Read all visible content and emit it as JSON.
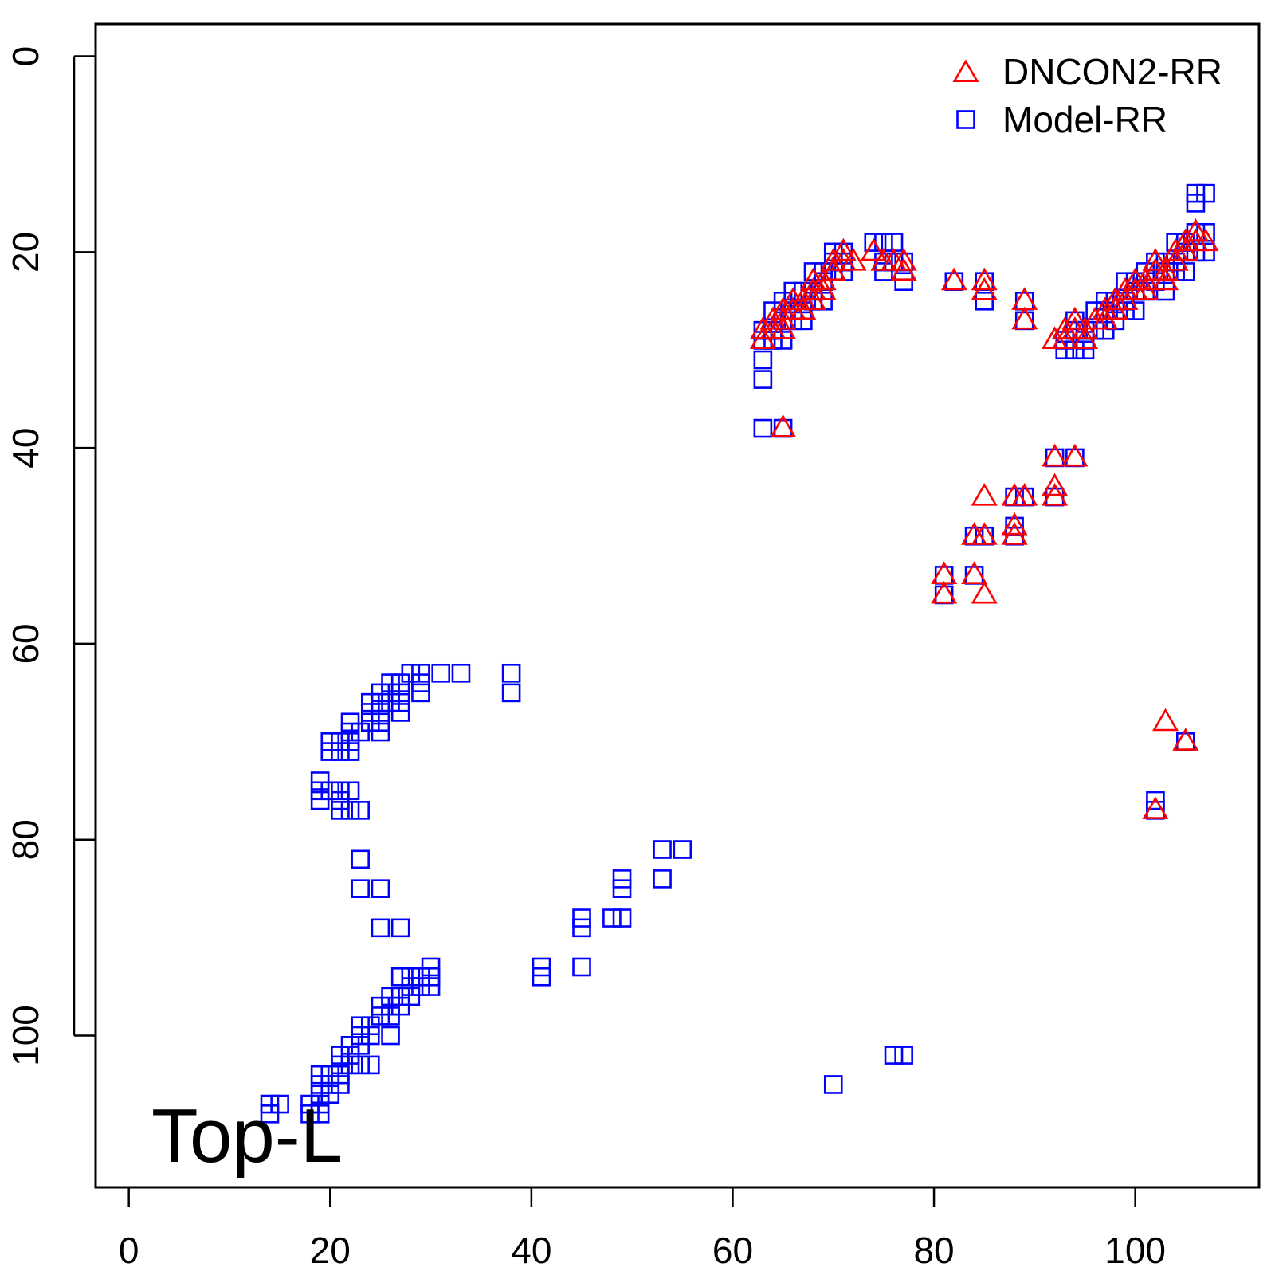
{
  "chart_data": {
    "type": "scatter",
    "title": "",
    "xlabel": "",
    "ylabel": "",
    "annotation": "Top-L",
    "xlim": [
      -3.3,
      112.3
    ],
    "ylim": [
      115.5,
      -3.3
    ],
    "x_ticks": [
      0,
      20,
      40,
      60,
      80,
      100
    ],
    "y_ticks": [
      0,
      20,
      40,
      60,
      80,
      100
    ],
    "grid": false,
    "legend": {
      "placement": "top-right"
    },
    "series": [
      {
        "name": "DNCON2-RR",
        "marker": "triangle",
        "color": "#ff0000",
        "points": [
          [
            63,
            28
          ],
          [
            63,
            29
          ],
          [
            64,
            27
          ],
          [
            64,
            28
          ],
          [
            65,
            26
          ],
          [
            65,
            27
          ],
          [
            65,
            28
          ],
          [
            66,
            25
          ],
          [
            66,
            26
          ],
          [
            67,
            25
          ],
          [
            67,
            26
          ],
          [
            68,
            23
          ],
          [
            68,
            24
          ],
          [
            68,
            25
          ],
          [
            69,
            23
          ],
          [
            69,
            24
          ],
          [
            70,
            21
          ],
          [
            70,
            22
          ],
          [
            71,
            20
          ],
          [
            71,
            21
          ],
          [
            72,
            21
          ],
          [
            65,
            38
          ],
          [
            74,
            20
          ],
          [
            75,
            21
          ],
          [
            76,
            21
          ],
          [
            77,
            21
          ],
          [
            77,
            22
          ],
          [
            82,
            23
          ],
          [
            85,
            23
          ],
          [
            85,
            24
          ],
          [
            89,
            25
          ],
          [
            89,
            27
          ],
          [
            92,
            29
          ],
          [
            93,
            28
          ],
          [
            93,
            29
          ],
          [
            94,
            27
          ],
          [
            94,
            28
          ],
          [
            95,
            28
          ],
          [
            95,
            29
          ],
          [
            96,
            27
          ],
          [
            97,
            26
          ],
          [
            97,
            27
          ],
          [
            98,
            25
          ],
          [
            98,
            26
          ],
          [
            99,
            24
          ],
          [
            99,
            25
          ],
          [
            100,
            23
          ],
          [
            100,
            24
          ],
          [
            101,
            23
          ],
          [
            101,
            24
          ],
          [
            102,
            21
          ],
          [
            102,
            22
          ],
          [
            103,
            22
          ],
          [
            103,
            23
          ],
          [
            104,
            20
          ],
          [
            104,
            21
          ],
          [
            105,
            19
          ],
          [
            105,
            20
          ],
          [
            106,
            18
          ],
          [
            106,
            19
          ],
          [
            107,
            19
          ],
          [
            92,
            41
          ],
          [
            94,
            41
          ],
          [
            85,
            45
          ],
          [
            88,
            45
          ],
          [
            89,
            45
          ],
          [
            92,
            44
          ],
          [
            92,
            45
          ],
          [
            84,
            49
          ],
          [
            85,
            49
          ],
          [
            88,
            48
          ],
          [
            88,
            49
          ],
          [
            81,
            53
          ],
          [
            84,
            53
          ],
          [
            81,
            55
          ],
          [
            85,
            55
          ],
          [
            103,
            68
          ],
          [
            105,
            70
          ],
          [
            102,
            77
          ]
        ]
      },
      {
        "name": "Model-RR",
        "marker": "square",
        "color": "#0000ff",
        "points": [
          [
            63,
            28
          ],
          [
            63,
            29
          ],
          [
            63,
            31
          ],
          [
            63,
            33
          ],
          [
            63,
            38
          ],
          [
            64,
            26
          ],
          [
            64,
            28
          ],
          [
            64,
            29
          ],
          [
            65,
            25
          ],
          [
            65,
            27
          ],
          [
            65,
            29
          ],
          [
            65,
            38
          ],
          [
            66,
            24
          ],
          [
            66,
            26
          ],
          [
            66,
            27
          ],
          [
            67,
            24
          ],
          [
            67,
            26
          ],
          [
            67,
            27
          ],
          [
            68,
            22
          ],
          [
            68,
            24
          ],
          [
            68,
            25
          ],
          [
            69,
            22
          ],
          [
            69,
            23
          ],
          [
            69,
            25
          ],
          [
            70,
            20
          ],
          [
            70,
            21
          ],
          [
            70,
            22
          ],
          [
            71,
            20
          ],
          [
            71,
            21
          ],
          [
            71,
            22
          ],
          [
            74,
            19
          ],
          [
            75,
            19
          ],
          [
            75,
            21
          ],
          [
            75,
            22
          ],
          [
            76,
            19
          ],
          [
            76,
            21
          ],
          [
            77,
            21
          ],
          [
            77,
            23
          ],
          [
            82,
            23
          ],
          [
            85,
            23
          ],
          [
            85,
            25
          ],
          [
            89,
            25
          ],
          [
            89,
            27
          ],
          [
            93,
            29
          ],
          [
            93,
            30
          ],
          [
            94,
            27
          ],
          [
            94,
            28
          ],
          [
            94,
            30
          ],
          [
            95,
            28
          ],
          [
            95,
            29
          ],
          [
            95,
            30
          ],
          [
            96,
            26
          ],
          [
            96,
            28
          ],
          [
            97,
            25
          ],
          [
            97,
            26
          ],
          [
            97,
            28
          ],
          [
            98,
            25
          ],
          [
            98,
            27
          ],
          [
            99,
            23
          ],
          [
            99,
            25
          ],
          [
            99,
            26
          ],
          [
            100,
            23
          ],
          [
            100,
            24
          ],
          [
            100,
            26
          ],
          [
            101,
            22
          ],
          [
            101,
            24
          ],
          [
            102,
            21
          ],
          [
            102,
            23
          ],
          [
            103,
            21
          ],
          [
            103,
            22
          ],
          [
            103,
            24
          ],
          [
            104,
            19
          ],
          [
            104,
            21
          ],
          [
            104,
            22
          ],
          [
            105,
            19
          ],
          [
            105,
            20
          ],
          [
            105,
            22
          ],
          [
            106,
            14
          ],
          [
            106,
            15
          ],
          [
            106,
            18
          ],
          [
            106,
            20
          ],
          [
            107,
            14
          ],
          [
            107,
            18
          ],
          [
            107,
            20
          ],
          [
            92,
            41
          ],
          [
            94,
            41
          ],
          [
            92,
            45
          ],
          [
            88,
            45
          ],
          [
            89,
            45
          ],
          [
            84,
            49
          ],
          [
            85,
            49
          ],
          [
            88,
            48
          ],
          [
            88,
            49
          ],
          [
            81,
            53
          ],
          [
            81,
            55
          ],
          [
            84,
            53
          ],
          [
            105,
            70
          ],
          [
            102,
            76
          ],
          [
            102,
            77
          ],
          [
            28,
            63
          ],
          [
            29,
            63
          ],
          [
            31,
            63
          ],
          [
            33,
            63
          ],
          [
            38,
            63
          ],
          [
            38,
            65
          ],
          [
            26,
            64
          ],
          [
            27,
            64
          ],
          [
            29,
            64
          ],
          [
            25,
            65
          ],
          [
            26,
            65
          ],
          [
            27,
            65
          ],
          [
            29,
            65
          ],
          [
            24,
            66
          ],
          [
            25,
            66
          ],
          [
            26,
            66
          ],
          [
            27,
            66
          ],
          [
            24,
            67
          ],
          [
            25,
            67
          ],
          [
            27,
            67
          ],
          [
            22,
            68
          ],
          [
            24,
            68
          ],
          [
            25,
            68
          ],
          [
            22,
            69
          ],
          [
            23,
            69
          ],
          [
            25,
            69
          ],
          [
            20,
            70
          ],
          [
            21,
            70
          ],
          [
            22,
            70
          ],
          [
            20,
            71
          ],
          [
            21,
            71
          ],
          [
            22,
            71
          ],
          [
            19,
            74
          ],
          [
            19,
            75
          ],
          [
            19,
            76
          ],
          [
            20,
            75
          ],
          [
            21,
            75
          ],
          [
            21,
            76
          ],
          [
            21,
            77
          ],
          [
            22,
            75
          ],
          [
            22,
            77
          ],
          [
            23,
            77
          ],
          [
            23,
            82
          ],
          [
            23,
            85
          ],
          [
            25,
            85
          ],
          [
            25,
            89
          ],
          [
            27,
            89
          ],
          [
            27,
            94
          ],
          [
            28,
            94
          ],
          [
            29,
            94
          ],
          [
            30,
            93
          ],
          [
            30,
            94
          ],
          [
            28,
            95
          ],
          [
            29,
            95
          ],
          [
            30,
            95
          ],
          [
            26,
            96
          ],
          [
            27,
            96
          ],
          [
            28,
            96
          ],
          [
            25,
            97
          ],
          [
            26,
            97
          ],
          [
            27,
            97
          ],
          [
            25,
            98
          ],
          [
            26,
            98
          ],
          [
            24,
            99
          ],
          [
            23,
            99
          ],
          [
            24,
            100
          ],
          [
            26,
            100
          ],
          [
            23,
            100
          ],
          [
            23,
            101
          ],
          [
            22,
            101
          ],
          [
            22,
            102
          ],
          [
            21,
            102
          ],
          [
            21,
            103
          ],
          [
            22,
            103
          ],
          [
            23,
            103
          ],
          [
            24,
            103
          ],
          [
            19,
            104
          ],
          [
            20,
            104
          ],
          [
            21,
            104
          ],
          [
            19,
            105
          ],
          [
            20,
            105
          ],
          [
            21,
            105
          ],
          [
            19,
            106
          ],
          [
            20,
            106
          ],
          [
            18,
            107
          ],
          [
            19,
            107
          ],
          [
            14,
            107
          ],
          [
            15,
            107
          ],
          [
            14,
            108
          ],
          [
            18,
            108
          ],
          [
            19,
            108
          ],
          [
            41,
            93
          ],
          [
            41,
            94
          ],
          [
            45,
            88
          ],
          [
            45,
            89
          ],
          [
            45,
            93
          ],
          [
            48,
            88
          ],
          [
            49,
            84
          ],
          [
            49,
            85
          ],
          [
            49,
            88
          ],
          [
            53,
            81
          ],
          [
            53,
            84
          ],
          [
            55,
            81
          ],
          [
            70,
            105
          ],
          [
            76,
            102
          ],
          [
            77,
            102
          ]
        ]
      }
    ]
  }
}
